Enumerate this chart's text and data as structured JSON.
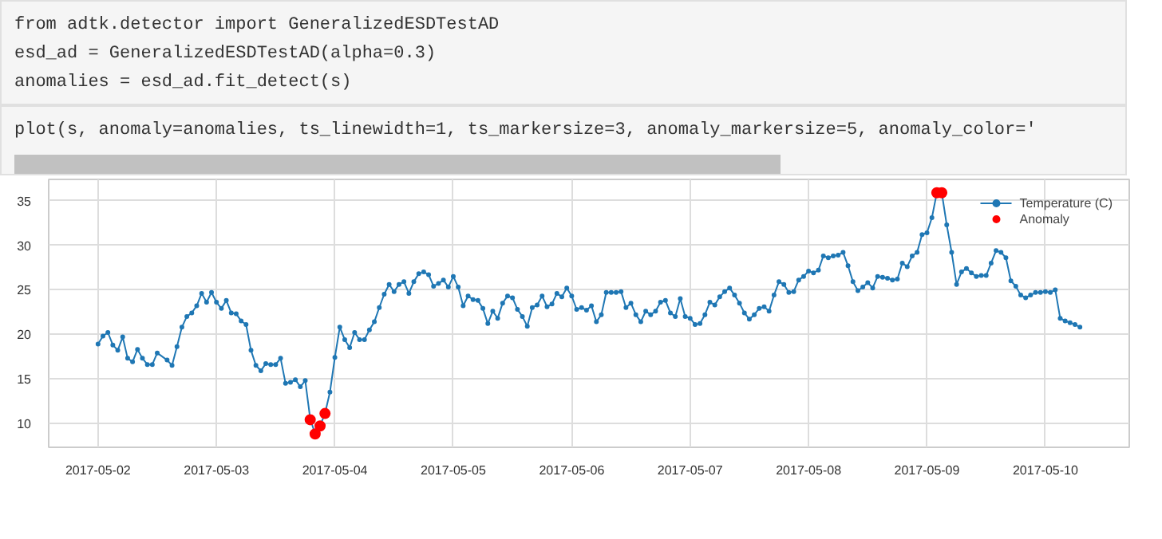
{
  "chart_data": {
    "type": "line",
    "annotations": [
      "from adtk.detector import GeneralizedESDTestAD",
      "esd_ad = GeneralizedESDTestAD(alpha=0.3)",
      "anomalies = esd_ad.fit_detect(s)",
      "plot(s, anomaly=anomalies, ts_linewidth=1, ts_markersize=3, anomaly_markersize=5, anomaly_color='"
    ],
    "xlim": [
      "2017-05-01T14:00",
      "2017-05-10T17:00"
    ],
    "xticks": [
      "2017-05-02",
      "2017-05-03",
      "2017-05-04",
      "2017-05-05",
      "2017-05-06",
      "2017-05-07",
      "2017-05-08",
      "2017-05-09",
      "2017-05-10"
    ],
    "ylim": [
      7.3,
      37.4
    ],
    "yticks": [
      10,
      15,
      20,
      25,
      30,
      35
    ],
    "grid": true,
    "legend": "top right",
    "marker": "circle",
    "line_style": "solid",
    "series": [
      {
        "name": "Temperature (C)",
        "color": "#1f77b4",
        "x": [
          "2017-05-02T00:00",
          "2017-05-02T01:00",
          "2017-05-02T02:00",
          "2017-05-02T03:00",
          "2017-05-02T04:00",
          "2017-05-02T05:00",
          "2017-05-02T06:00",
          "2017-05-02T07:00",
          "2017-05-02T08:00",
          "2017-05-02T09:00",
          "2017-05-02T10:00",
          "2017-05-02T11:00",
          "2017-05-02T12:00",
          "2017-05-02T14:00",
          "2017-05-02T15:00",
          "2017-05-02T16:00",
          "2017-05-02T17:00",
          "2017-05-02T18:00",
          "2017-05-02T19:00",
          "2017-05-02T20:00",
          "2017-05-02T21:00",
          "2017-05-02T22:00",
          "2017-05-02T23:00",
          "2017-05-03T00:00",
          "2017-05-03T01:00",
          "2017-05-03T02:00",
          "2017-05-03T03:00",
          "2017-05-03T04:00",
          "2017-05-03T05:00",
          "2017-05-03T06:00",
          "2017-05-03T07:00",
          "2017-05-03T08:00",
          "2017-05-03T09:00",
          "2017-05-03T10:00",
          "2017-05-03T11:00",
          "2017-05-03T12:00",
          "2017-05-03T13:00",
          "2017-05-03T14:00",
          "2017-05-03T15:00",
          "2017-05-03T16:00",
          "2017-05-03T17:00",
          "2017-05-03T18:00",
          "2017-05-03T19:00",
          "2017-05-03T20:00",
          "2017-05-03T21:00",
          "2017-05-03T22:00",
          "2017-05-03T23:00",
          "2017-05-04T00:00",
          "2017-05-04T01:00",
          "2017-05-04T02:00",
          "2017-05-04T03:00",
          "2017-05-04T04:00",
          "2017-05-04T05:00",
          "2017-05-04T06:00",
          "2017-05-04T07:00",
          "2017-05-04T08:00",
          "2017-05-04T09:00",
          "2017-05-04T10:00",
          "2017-05-04T11:00",
          "2017-05-04T12:00",
          "2017-05-04T13:00",
          "2017-05-04T14:00",
          "2017-05-04T15:00",
          "2017-05-04T16:00",
          "2017-05-04T17:00",
          "2017-05-04T18:00",
          "2017-05-04T19:00",
          "2017-05-04T20:00",
          "2017-05-04T21:00",
          "2017-05-04T22:00",
          "2017-05-04T23:00",
          "2017-05-05T00:00",
          "2017-05-05T01:00",
          "2017-05-05T02:00",
          "2017-05-05T03:00",
          "2017-05-05T04:00",
          "2017-05-05T05:00",
          "2017-05-05T06:00",
          "2017-05-05T07:00",
          "2017-05-05T08:00",
          "2017-05-05T09:00",
          "2017-05-05T10:00",
          "2017-05-05T11:00",
          "2017-05-05T12:00",
          "2017-05-05T13:00",
          "2017-05-05T14:00",
          "2017-05-05T15:00",
          "2017-05-05T16:00",
          "2017-05-05T17:00",
          "2017-05-05T18:00",
          "2017-05-05T19:00",
          "2017-05-05T20:00",
          "2017-05-05T21:00",
          "2017-05-05T22:00",
          "2017-05-05T23:00",
          "2017-05-06T00:00",
          "2017-05-06T01:00",
          "2017-05-06T02:00",
          "2017-05-06T03:00",
          "2017-05-06T04:00",
          "2017-05-06T05:00",
          "2017-05-06T06:00",
          "2017-05-06T07:00",
          "2017-05-06T08:00",
          "2017-05-06T09:00",
          "2017-05-06T10:00",
          "2017-05-06T11:00",
          "2017-05-06T12:00",
          "2017-05-06T13:00",
          "2017-05-06T14:00",
          "2017-05-06T15:00",
          "2017-05-06T16:00",
          "2017-05-06T17:00",
          "2017-05-06T18:00",
          "2017-05-06T19:00",
          "2017-05-06T20:00",
          "2017-05-06T21:00",
          "2017-05-06T22:00",
          "2017-05-06T23:00",
          "2017-05-07T00:00",
          "2017-05-07T01:00",
          "2017-05-07T02:00",
          "2017-05-07T03:00",
          "2017-05-07T04:00",
          "2017-05-07T05:00",
          "2017-05-07T06:00",
          "2017-05-07T07:00",
          "2017-05-07T08:00",
          "2017-05-07T09:00",
          "2017-05-07T10:00",
          "2017-05-07T11:00",
          "2017-05-07T12:00",
          "2017-05-07T13:00",
          "2017-05-07T14:00",
          "2017-05-07T15:00",
          "2017-05-07T16:00",
          "2017-05-07T17:00",
          "2017-05-07T18:00",
          "2017-05-07T19:00",
          "2017-05-07T20:00",
          "2017-05-07T21:00",
          "2017-05-07T22:00",
          "2017-05-07T23:00",
          "2017-05-08T00:00",
          "2017-05-08T01:00",
          "2017-05-08T02:00",
          "2017-05-08T03:00",
          "2017-05-08T04:00",
          "2017-05-08T05:00",
          "2017-05-08T06:00",
          "2017-05-08T07:00",
          "2017-05-08T08:00",
          "2017-05-08T09:00",
          "2017-05-08T10:00",
          "2017-05-08T11:00",
          "2017-05-08T12:00",
          "2017-05-08T13:00",
          "2017-05-08T14:00",
          "2017-05-08T15:00",
          "2017-05-08T16:00",
          "2017-05-08T17:00",
          "2017-05-08T18:00",
          "2017-05-08T19:00",
          "2017-05-08T20:00",
          "2017-05-08T21:00",
          "2017-05-08T22:00",
          "2017-05-08T23:00",
          "2017-05-09T00:00",
          "2017-05-09T01:00",
          "2017-05-09T02:00",
          "2017-05-09T03:00",
          "2017-05-09T04:00",
          "2017-05-09T05:00",
          "2017-05-09T06:00",
          "2017-05-09T07:00",
          "2017-05-09T08:00",
          "2017-05-09T09:00",
          "2017-05-09T10:00",
          "2017-05-09T11:00",
          "2017-05-09T12:00",
          "2017-05-09T13:00",
          "2017-05-09T14:00",
          "2017-05-09T15:00",
          "2017-05-09T16:00",
          "2017-05-09T17:00",
          "2017-05-09T18:00",
          "2017-05-09T19:00",
          "2017-05-09T20:00",
          "2017-05-09T21:00",
          "2017-05-09T22:00",
          "2017-05-09T23:00",
          "2017-05-10T00:00",
          "2017-05-10T01:00",
          "2017-05-10T02:00",
          "2017-05-10T03:00",
          "2017-05-10T04:00",
          "2017-05-10T05:00",
          "2017-05-10T06:00",
          "2017-05-10T07:00"
        ],
        "values": [
          18.9,
          19.8,
          20.2,
          18.8,
          18.2,
          19.7,
          17.3,
          16.9,
          18.3,
          17.3,
          16.6,
          16.6,
          17.9,
          17.1,
          16.5,
          18.6,
          20.8,
          22.0,
          22.4,
          23.2,
          24.6,
          23.6,
          24.7,
          23.6,
          22.9,
          23.8,
          22.4,
          22.3,
          21.5,
          21.1,
          18.2,
          16.5,
          15.9,
          16.7,
          16.6,
          16.6,
          17.3,
          14.5,
          14.6,
          14.9,
          14.1,
          14.8,
          10.5,
          8.8,
          9.7,
          11.1,
          13.5,
          17.4,
          20.8,
          19.4,
          18.5,
          20.2,
          19.4,
          19.4,
          20.5,
          21.4,
          23.0,
          24.5,
          25.6,
          24.8,
          25.6,
          25.9,
          24.6,
          25.9,
          26.8,
          27.0,
          26.7,
          25.4,
          25.7,
          26.1,
          25.3,
          26.5,
          25.3,
          23.2,
          24.3,
          23.9,
          23.8,
          22.9,
          21.2,
          22.6,
          21.8,
          23.5,
          24.3,
          24.1,
          22.8,
          22.0,
          20.9,
          23.0,
          23.3,
          24.3,
          23.1,
          23.4,
          24.6,
          24.2,
          25.2,
          24.3,
          22.8,
          23.0,
          22.7,
          23.2,
          21.4,
          22.2,
          24.7,
          24.7,
          24.7,
          24.8,
          23.0,
          23.5,
          22.2,
          21.4,
          22.6,
          22.2,
          22.6,
          23.6,
          23.8,
          22.4,
          22.0,
          24.0,
          22.0,
          21.8,
          21.1,
          21.2,
          22.2,
          23.6,
          23.3,
          24.2,
          24.8,
          25.2,
          24.4,
          23.5,
          22.4,
          21.7,
          22.2,
          22.9,
          23.1,
          22.6,
          24.4,
          25.9,
          25.6,
          24.7,
          24.8,
          26.1,
          26.5,
          27.1,
          26.9,
          27.2,
          28.8,
          28.6,
          28.8,
          28.9,
          29.2,
          27.7,
          25.9,
          24.9,
          25.3,
          25.8,
          25.2,
          26.5,
          26.4,
          26.3,
          26.1,
          26.2,
          28.0,
          27.6,
          28.8,
          29.2,
          31.2,
          31.4,
          33.1,
          35.9,
          35.9,
          32.3,
          29.2,
          25.6,
          27.0,
          27.4,
          26.9,
          26.5,
          26.6,
          26.6,
          28.0,
          29.4,
          29.2,
          28.6,
          26.0,
          25.4,
          24.4,
          24.1,
          24.4,
          24.7,
          24.7,
          24.8,
          24.7,
          25.0,
          21.8,
          21.5,
          21.3,
          21.1,
          20.8
        ]
      },
      {
        "name": "Anomaly",
        "color": "#ff0000",
        "type": "scatter",
        "x": [
          "2017-05-03T19:00",
          "2017-05-03T20:00",
          "2017-05-03T21:00",
          "2017-05-03T22:00",
          "2017-05-09T02:00",
          "2017-05-09T03:00"
        ],
        "values": [
          10.4,
          8.8,
          9.7,
          11.1,
          35.9,
          35.9
        ]
      }
    ]
  }
}
